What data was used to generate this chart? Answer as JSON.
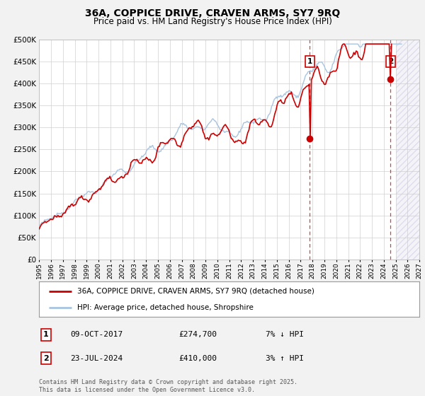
{
  "title": "36A, COPPICE DRIVE, CRAVEN ARMS, SY7 9RQ",
  "subtitle": "Price paid vs. HM Land Registry's House Price Index (HPI)",
  "background_color": "#f2f2f2",
  "plot_background": "#ffffff",
  "grid_color": "#cccccc",
  "hpi_color": "#a8c4e0",
  "price_color": "#cc0000",
  "marker1_x": 2017.77,
  "marker1_y": 274700,
  "marker2_x": 2024.56,
  "marker2_y": 410000,
  "legend_price": "36A, COPPICE DRIVE, CRAVEN ARMS, SY7 9RQ (detached house)",
  "legend_hpi": "HPI: Average price, detached house, Shropshire",
  "footer": "Contains HM Land Registry data © Crown copyright and database right 2025.\nThis data is licensed under the Open Government Licence v3.0.",
  "xmin": 1995,
  "xmax": 2027,
  "ymin": 0,
  "ymax": 500000,
  "yticks": [
    0,
    50000,
    100000,
    150000,
    200000,
    250000,
    300000,
    350000,
    400000,
    450000,
    500000
  ]
}
